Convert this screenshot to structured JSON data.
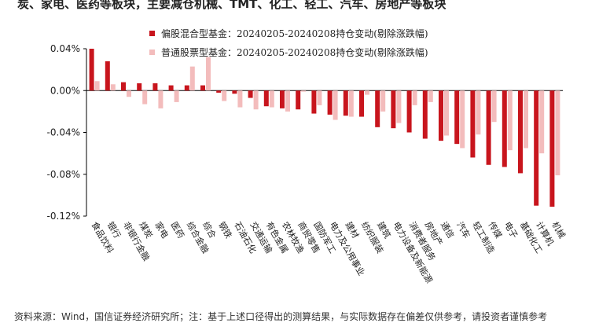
{
  "page": {
    "title": "炭、家电、医药等板块，主要减仓机械、TMT、化工、轻工、汽车、房地产等板块",
    "footer": "资料来源：Wind，国信证券经济研究所；注：基于上述口径得出的测算结果，与实际数据存在偏差仅供参考，请投资者谨慎参考"
  },
  "colors": {
    "series1": "#c8151d",
    "series2": "#f3bcbc",
    "axis": "#000000"
  },
  "chart_data": {
    "type": "bar",
    "ylim": [
      -0.12,
      0.04
    ],
    "y_ticks": [
      "0.04%",
      "0.00%",
      "-0.04%",
      "-0.08%",
      "-0.12%"
    ],
    "y_tick_values": [
      0.04,
      0.0,
      -0.04,
      -0.08,
      -0.12
    ],
    "legend_position": "top-left",
    "categories": [
      "食品饮料",
      "银行",
      "非银行金融",
      "煤炭",
      "家电",
      "医药",
      "综合金融",
      "综合",
      "钢铁",
      "石油石化",
      "交通运输",
      "有色金属",
      "农林牧渔",
      "商贸零售",
      "国防军工",
      "电力及公用事业",
      "建材",
      "纺织服装",
      "建筑",
      "电力设备及新能源",
      "消费者服务",
      "房地产",
      "通信",
      "汽车",
      "轻工制造",
      "传媒",
      "电子",
      "基础化工",
      "计算机",
      "机械"
    ],
    "series": [
      {
        "name": "偏股混合型基金：20240205-20240208持仓变动(剔除涨跌幅)",
        "values": [
          0.04,
          0.028,
          0.008,
          0.007,
          0.007,
          0.005,
          0.005,
          0.005,
          -0.002,
          -0.003,
          -0.007,
          -0.015,
          -0.017,
          -0.018,
          -0.022,
          -0.023,
          -0.024,
          -0.025,
          -0.035,
          -0.036,
          -0.04,
          -0.046,
          -0.048,
          -0.051,
          -0.064,
          -0.071,
          -0.073,
          -0.079,
          -0.11,
          -0.111
        ]
      },
      {
        "name": "普通股票型基金：20240205-20240208持仓变动(剔除涨跌幅)",
        "values": [
          0.009,
          0.006,
          -0.006,
          -0.013,
          -0.017,
          -0.011,
          0.023,
          0.032,
          -0.01,
          -0.016,
          -0.018,
          -0.016,
          -0.02,
          -0.001,
          -0.014,
          -0.028,
          -0.025,
          -0.004,
          -0.02,
          -0.031,
          -0.014,
          -0.011,
          -0.043,
          -0.055,
          -0.042,
          -0.03,
          -0.057,
          -0.055,
          -0.06,
          -0.081
        ]
      }
    ]
  }
}
